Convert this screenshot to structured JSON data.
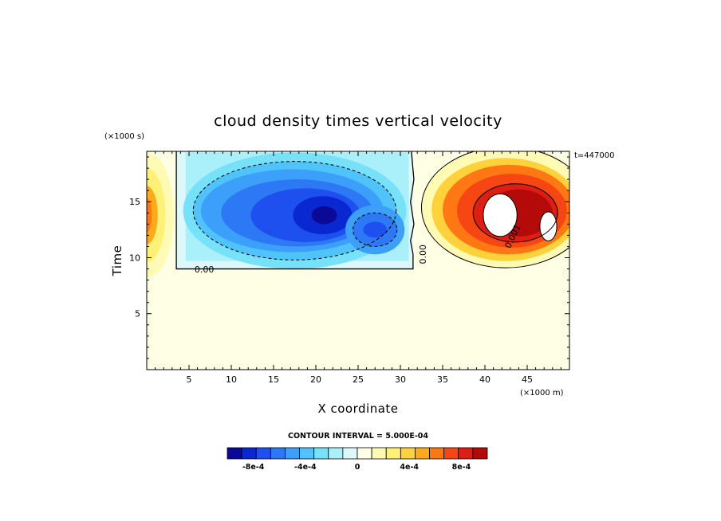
{
  "chart_data": {
    "type": "heatmap",
    "title": "cloud density times vertical velocity",
    "xlabel": "X coordinate",
    "ylabel": "Time",
    "x_units": "(×1000 m)",
    "y_units": "(×1000 s)",
    "timestamp": "t=447000",
    "xlim": [
      0,
      50
    ],
    "ylim": [
      0,
      19.5
    ],
    "x_ticks": [
      5,
      10,
      15,
      20,
      25,
      30,
      35,
      40,
      45
    ],
    "y_ticks": [
      5,
      10,
      15
    ],
    "contour_interval_text": "CONTOUR INTERVAL = 5.000E-04",
    "contour_interval": 0.0005,
    "contour_labels": [
      {
        "text": "0.00",
        "x": 6.8,
        "y": 8.7
      },
      {
        "text": "0.00",
        "x": 33.0,
        "y": 10.3
      },
      {
        "text": "0.001",
        "x": 43.6,
        "y": 11.8
      }
    ],
    "colorbar": {
      "min": -0.001,
      "max": 0.001,
      "tick_labels": [
        "-8e-4",
        "-4e-4",
        "0",
        "4e-4",
        "8e-4"
      ],
      "colors": [
        "#0a0a96",
        "#0a28d2",
        "#1e50f0",
        "#2d78f5",
        "#3ca0fa",
        "#50c3fa",
        "#78e1fa",
        "#aaf0fa",
        "#dcf8fa",
        "#ffffe6",
        "#fffab4",
        "#fff078",
        "#ffd23c",
        "#ffaa1e",
        "#ff7814",
        "#f54614",
        "#dc1e14",
        "#b40a0a"
      ]
    },
    "features": [
      {
        "kind": "negative-region",
        "x_range": [
          3.5,
          31.5
        ],
        "y_range": [
          9,
          19.5
        ],
        "min_value": -0.00095,
        "min_location": [
          21,
          13.8
        ]
      },
      {
        "kind": "negative-cell",
        "location": [
          27,
          12.5
        ],
        "value": -0.0007
      },
      {
        "kind": "positive-region",
        "x_range": [
          33,
          50
        ],
        "y_range": [
          9.8,
          19
        ],
        "max_value": 0.001,
        "max_location": [
          43.5,
          14
        ]
      },
      {
        "kind": "positive-edge",
        "location": [
          0.5,
          13.8
        ],
        "value": 0.0006
      }
    ]
  }
}
